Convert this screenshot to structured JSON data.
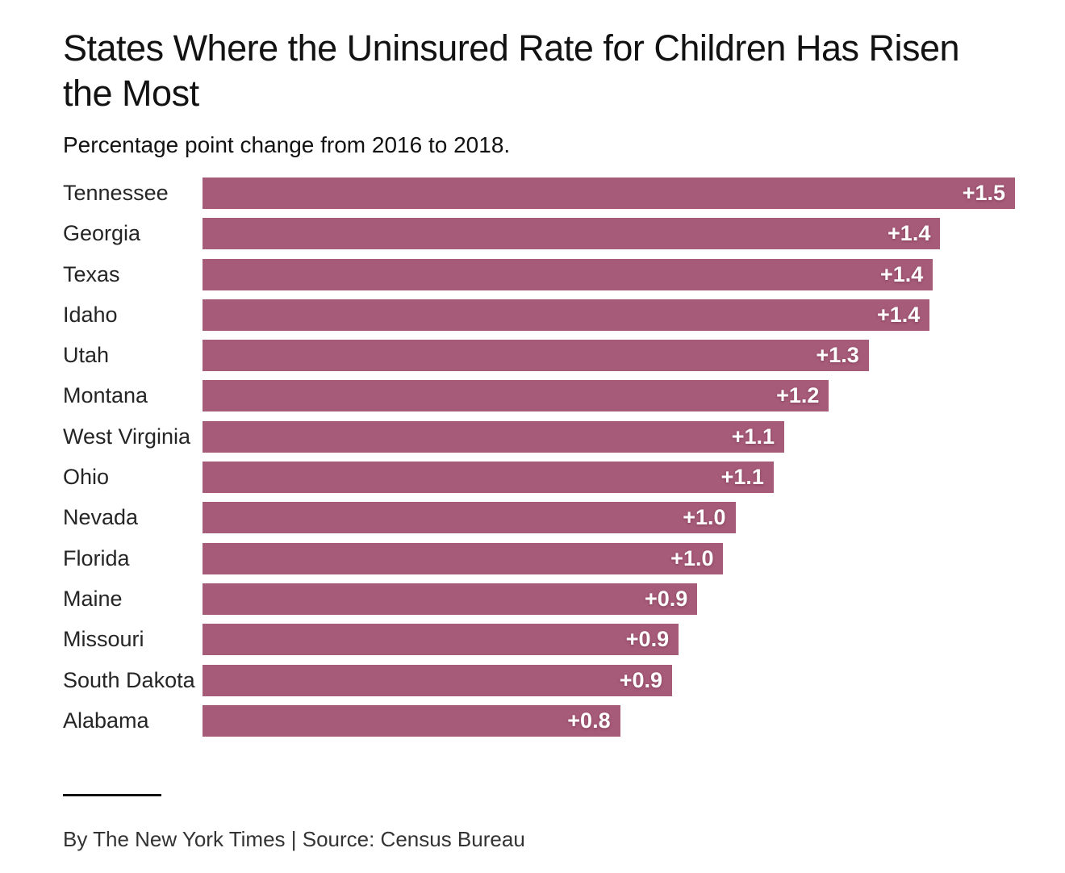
{
  "page": {
    "title_line1": "States Where the Uninsured Rate for Children Has Risen",
    "title_line2": "the Most",
    "subtitle": "Percentage point change from 2016 to 2018.",
    "footer": "By The New York Times | Source: Census Bureau",
    "colors": {
      "bar": "#a65b78",
      "title_text": "#121212",
      "state_label_text": "#252525",
      "value_text": "#ffffff",
      "footer_text": "#333333"
    }
  },
  "chart_data": {
    "type": "bar",
    "orientation": "horizontal",
    "title": "States Where the Uninsured Rate for Children Has Risen the Most",
    "subtitle": "Percentage point change from 2016 to 2018.",
    "categories": [
      "Tennessee",
      "Georgia",
      "Texas",
      "Idaho",
      "Utah",
      "Montana",
      "West Virginia",
      "Ohio",
      "Nevada",
      "Florida",
      "Maine",
      "Missouri",
      "South Dakota",
      "Alabama"
    ],
    "values": [
      1.5,
      1.4,
      1.4,
      1.4,
      1.3,
      1.2,
      1.1,
      1.1,
      1.0,
      1.0,
      0.9,
      0.9,
      0.9,
      0.8
    ],
    "value_labels": [
      "+1.5",
      "+1.4",
      "+1.4",
      "+1.4",
      "+1.3",
      "+1.2",
      "+1.1",
      "+1.1",
      "+1.0",
      "+1.0",
      "+0.9",
      "+0.9",
      "+0.9",
      "+0.8"
    ],
    "bar_fractions": [
      1.0,
      0.908,
      0.899,
      0.895,
      0.82,
      0.771,
      0.716,
      0.703,
      0.656,
      0.641,
      0.609,
      0.586,
      0.578,
      0.514
    ],
    "xlim": [
      0,
      1.5
    ],
    "grid": false,
    "legend": false,
    "source": "Census Bureau"
  }
}
